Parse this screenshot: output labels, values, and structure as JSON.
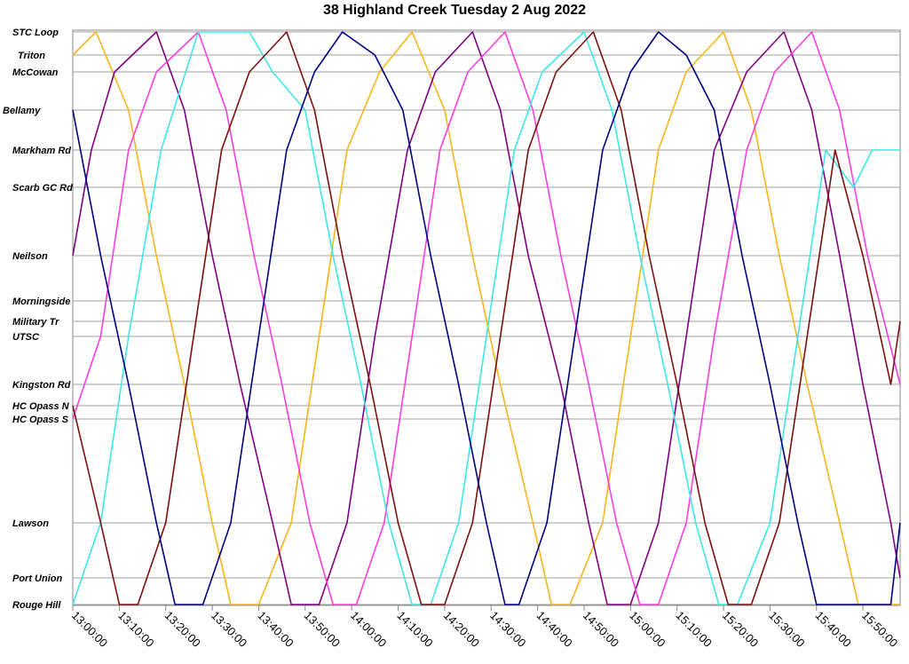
{
  "chart_data": {
    "type": "line",
    "title": "38 Highland Creek Tuesday 2 Aug 2022",
    "xlabel": "",
    "ylabel": "",
    "xlim": [
      "13:00:00",
      "15:58:00"
    ],
    "x_ticks": [
      "13:00:00",
      "13:10:00",
      "13:20:00",
      "13:30:00",
      "13:40:00",
      "13:50:00",
      "14:00:00",
      "14:10:00",
      "14:20:00",
      "14:30:00",
      "14:40:00",
      "14:50:00",
      "15:00:00",
      "15:10:00",
      "15:20:00",
      "15:30:00",
      "15:40:00",
      "15:50:00"
    ],
    "stops": [
      "STC Loop",
      "Triton",
      "McCowan",
      "Bellamy",
      "Markham Rd",
      "Scarb GC Rd",
      "Neilson",
      "Morningside",
      "Military Tr",
      "UTSC",
      "Kingston Rd",
      "HC Opass N",
      "HC Opass S",
      "Lawson",
      "Port Union",
      "Rouge Hill"
    ],
    "grid": true,
    "legend": "none",
    "series": [
      {
        "color": "#f5b51c",
        "points": [
          [
            "13:00:00",
            "Triton"
          ],
          [
            "13:05:00",
            "STC Loop"
          ],
          [
            "13:12:00",
            "Bellamy"
          ],
          [
            "13:18:00",
            "Neilson"
          ],
          [
            "13:24:00",
            "Kingston Rd"
          ],
          [
            "13:30:00",
            "Lawson"
          ],
          [
            "13:34:00",
            "Rouge Hill"
          ],
          [
            "13:40:00",
            "Rouge Hill"
          ],
          [
            "13:47:00",
            "Lawson"
          ],
          [
            "13:53:00",
            "UTSC"
          ],
          [
            "13:59:00",
            "Markham Rd"
          ],
          [
            "14:06:00",
            "McCowan"
          ],
          [
            "14:13:00",
            "STC Loop"
          ],
          [
            "14:20:00",
            "Bellamy"
          ],
          [
            "14:26:00",
            "Neilson"
          ],
          [
            "14:32:00",
            "Kingston Rd"
          ],
          [
            "14:39:00",
            "Lawson"
          ],
          [
            "14:43:00",
            "Rouge Hill"
          ],
          [
            "14:47:00",
            "Rouge Hill"
          ],
          [
            "14:54:00",
            "Lawson"
          ],
          [
            "15:00:00",
            "UTSC"
          ],
          [
            "15:06:00",
            "Markham Rd"
          ],
          [
            "15:12:00",
            "McCowan"
          ],
          [
            "15:20:00",
            "STC Loop"
          ],
          [
            "15:26:00",
            "Bellamy"
          ],
          [
            "15:32:00",
            "Neilson"
          ],
          [
            "15:38:00",
            "Kingston Rd"
          ],
          [
            "15:45:00",
            "Lawson"
          ],
          [
            "15:49:00",
            "Rouge Hill"
          ],
          [
            "15:58:00",
            "Rouge Hill"
          ]
        ]
      },
      {
        "color": "#800080",
        "points": [
          [
            "13:00:00",
            "Neilson"
          ],
          [
            "13:04:00",
            "Markham Rd"
          ],
          [
            "13:09:00",
            "McCowan"
          ],
          [
            "13:18:00",
            "STC Loop"
          ],
          [
            "13:24:00",
            "Bellamy"
          ],
          [
            "13:30:00",
            "Neilson"
          ],
          [
            "13:36:00",
            "Kingston Rd"
          ],
          [
            "13:43:00",
            "Lawson"
          ],
          [
            "13:47:00",
            "Rouge Hill"
          ],
          [
            "13:53:00",
            "Rouge Hill"
          ],
          [
            "13:59:00",
            "Lawson"
          ],
          [
            "14:05:00",
            "UTSC"
          ],
          [
            "14:12:00",
            "Markham Rd"
          ],
          [
            "14:18:00",
            "McCowan"
          ],
          [
            "14:26:00",
            "STC Loop"
          ],
          [
            "14:32:00",
            "Bellamy"
          ],
          [
            "14:38:00",
            "Neilson"
          ],
          [
            "14:45:00",
            "Kingston Rd"
          ],
          [
            "14:51:00",
            "Lawson"
          ],
          [
            "14:55:00",
            "Rouge Hill"
          ],
          [
            "15:00:00",
            "Rouge Hill"
          ],
          [
            "15:06:00",
            "Lawson"
          ],
          [
            "15:12:00",
            "UTSC"
          ],
          [
            "15:18:00",
            "Markham Rd"
          ],
          [
            "15:25:00",
            "McCowan"
          ],
          [
            "15:33:00",
            "STC Loop"
          ],
          [
            "15:39:00",
            "Bellamy"
          ],
          [
            "15:45:00",
            "Neilson"
          ],
          [
            "15:50:00",
            "Kingston Rd"
          ],
          [
            "15:56:00",
            "Lawson"
          ],
          [
            "15:58:00",
            "Port Union"
          ]
        ]
      },
      {
        "color": "#ff3ddd",
        "points": [
          [
            "13:00:00",
            "HC Opass S"
          ],
          [
            "13:06:00",
            "UTSC"
          ],
          [
            "13:12:00",
            "Markham Rd"
          ],
          [
            "13:18:00",
            "McCowan"
          ],
          [
            "13:27:00",
            "STC Loop"
          ],
          [
            "13:33:00",
            "Bellamy"
          ],
          [
            "13:39:00",
            "Neilson"
          ],
          [
            "13:45:00",
            "Kingston Rd"
          ],
          [
            "13:51:00",
            "Lawson"
          ],
          [
            "13:56:00",
            "Rouge Hill"
          ],
          [
            "14:01:00",
            "Rouge Hill"
          ],
          [
            "14:07:00",
            "Lawson"
          ],
          [
            "14:13:00",
            "UTSC"
          ],
          [
            "14:19:00",
            "Markham Rd"
          ],
          [
            "14:25:00",
            "McCowan"
          ],
          [
            "14:33:00",
            "STC Loop"
          ],
          [
            "14:39:00",
            "Bellamy"
          ],
          [
            "14:45:00",
            "Neilson"
          ],
          [
            "14:51:00",
            "Kingston Rd"
          ],
          [
            "14:57:00",
            "Lawson"
          ],
          [
            "15:02:00",
            "Rouge Hill"
          ],
          [
            "15:06:00",
            "Rouge Hill"
          ],
          [
            "15:12:00",
            "Lawson"
          ],
          [
            "15:18:00",
            "UTSC"
          ],
          [
            "15:25:00",
            "Markham Rd"
          ],
          [
            "15:31:00",
            "McCowan"
          ],
          [
            "15:39:00",
            "STC Loop"
          ],
          [
            "15:45:00",
            "Bellamy"
          ],
          [
            "15:51:00",
            "Neilson"
          ],
          [
            "15:58:00",
            "Kingston Rd"
          ]
        ]
      },
      {
        "color": "#3ee7e8",
        "points": [
          [
            "13:00:00",
            "Rouge Hill"
          ],
          [
            "13:06:00",
            "Lawson"
          ],
          [
            "13:12:00",
            "UTSC"
          ],
          [
            "13:19:00",
            "Markham Rd"
          ],
          [
            "13:27:00",
            "STC Loop"
          ],
          [
            "13:38:00",
            "STC Loop"
          ],
          [
            "13:43:00",
            "McCowan"
          ],
          [
            "13:50:00",
            "Bellamy"
          ],
          [
            "13:56:00",
            "Neilson"
          ],
          [
            "14:02:00",
            "Kingston Rd"
          ],
          [
            "14:08:00",
            "Lawson"
          ],
          [
            "14:13:00",
            "Rouge Hill"
          ],
          [
            "14:17:00",
            "Rouge Hill"
          ],
          [
            "14:23:00",
            "Lawson"
          ],
          [
            "14:29:00",
            "UTSC"
          ],
          [
            "14:35:00",
            "Markham Rd"
          ],
          [
            "14:41:00",
            "McCowan"
          ],
          [
            "14:50:00",
            "STC Loop"
          ],
          [
            "14:56:00",
            "Bellamy"
          ],
          [
            "15:02:00",
            "Neilson"
          ],
          [
            "15:08:00",
            "Kingston Rd"
          ],
          [
            "15:14:00",
            "Lawson"
          ],
          [
            "15:19:00",
            "Rouge Hill"
          ],
          [
            "15:23:00",
            "Rouge Hill"
          ],
          [
            "15:30:00",
            "Lawson"
          ],
          [
            "15:36:00",
            "UTSC"
          ],
          [
            "15:42:00",
            "Markham Rd"
          ],
          [
            "15:48:00",
            "Scarb GC Rd"
          ],
          [
            "15:52:00",
            "Markham Rd"
          ],
          [
            "15:58:00",
            "Markham Rd"
          ]
        ]
      },
      {
        "color": "#7b1010",
        "points": [
          [
            "13:00:00",
            "HC Opass N"
          ],
          [
            "13:06:00",
            "Lawson"
          ],
          [
            "13:10:00",
            "Rouge Hill"
          ],
          [
            "13:14:00",
            "Rouge Hill"
          ],
          [
            "13:20:00",
            "Lawson"
          ],
          [
            "13:26:00",
            "UTSC"
          ],
          [
            "13:32:00",
            "Markham Rd"
          ],
          [
            "13:38:00",
            "McCowan"
          ],
          [
            "13:46:00",
            "STC Loop"
          ],
          [
            "13:52:00",
            "Bellamy"
          ],
          [
            "13:58:00",
            "Neilson"
          ],
          [
            "14:04:00",
            "Kingston Rd"
          ],
          [
            "14:10:00",
            "Lawson"
          ],
          [
            "14:15:00",
            "Rouge Hill"
          ],
          [
            "14:20:00",
            "Rouge Hill"
          ],
          [
            "14:26:00",
            "Lawson"
          ],
          [
            "14:32:00",
            "UTSC"
          ],
          [
            "14:38:00",
            "Markham Rd"
          ],
          [
            "14:44:00",
            "McCowan"
          ],
          [
            "14:52:00",
            "STC Loop"
          ],
          [
            "14:58:00",
            "Bellamy"
          ],
          [
            "15:04:00",
            "Neilson"
          ],
          [
            "15:10:00",
            "Kingston Rd"
          ],
          [
            "15:16:00",
            "Lawson"
          ],
          [
            "15:21:00",
            "Rouge Hill"
          ],
          [
            "15:26:00",
            "Rouge Hill"
          ],
          [
            "15:32:00",
            "Lawson"
          ],
          [
            "15:38:00",
            "UTSC"
          ],
          [
            "15:44:00",
            "Markham Rd"
          ],
          [
            "15:50:00",
            "Neilson"
          ],
          [
            "15:56:00",
            "Kingston Rd"
          ],
          [
            "15:58:00",
            "Military Tr"
          ]
        ]
      },
      {
        "color": "#000080",
        "points": [
          [
            "13:00:00",
            "Bellamy"
          ],
          [
            "13:06:00",
            "Neilson"
          ],
          [
            "13:12:00",
            "Kingston Rd"
          ],
          [
            "13:18:00",
            "Lawson"
          ],
          [
            "13:22:00",
            "Rouge Hill"
          ],
          [
            "13:28:00",
            "Rouge Hill"
          ],
          [
            "13:34:00",
            "Lawson"
          ],
          [
            "13:40:00",
            "UTSC"
          ],
          [
            "13:46:00",
            "Markham Rd"
          ],
          [
            "13:52:00",
            "McCowan"
          ],
          [
            "13:58:00",
            "STC Loop"
          ],
          [
            "14:05:00",
            "Triton"
          ],
          [
            "14:11:00",
            "Bellamy"
          ],
          [
            "14:17:00",
            "Neilson"
          ],
          [
            "14:23:00",
            "Kingston Rd"
          ],
          [
            "14:29:00",
            "Lawson"
          ],
          [
            "14:33:00",
            "Rouge Hill"
          ],
          [
            "14:36:00",
            "Rouge Hill"
          ],
          [
            "14:42:00",
            "Lawson"
          ],
          [
            "14:48:00",
            "UTSC"
          ],
          [
            "14:54:00",
            "Markham Rd"
          ],
          [
            "15:00:00",
            "McCowan"
          ],
          [
            "15:06:00",
            "STC Loop"
          ],
          [
            "15:12:00",
            "Triton"
          ],
          [
            "15:18:00",
            "Bellamy"
          ],
          [
            "15:24:00",
            "Neilson"
          ],
          [
            "15:30:00",
            "Kingston Rd"
          ],
          [
            "15:36:00",
            "Lawson"
          ],
          [
            "15:40:00",
            "Rouge Hill"
          ],
          [
            "15:56:00",
            "Rouge Hill"
          ],
          [
            "15:58:00",
            "Lawson"
          ]
        ]
      }
    ]
  }
}
